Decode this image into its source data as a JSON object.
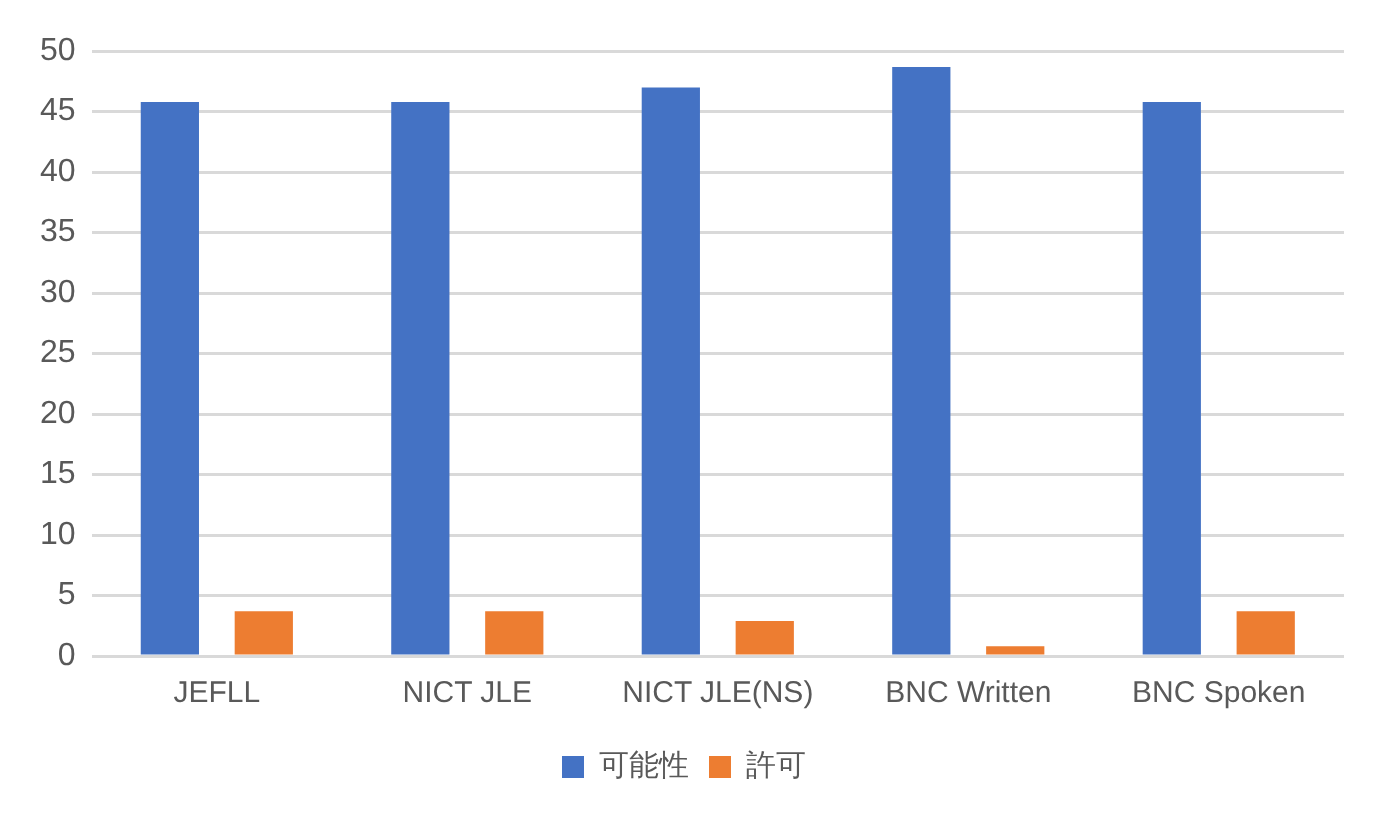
{
  "chart_data": {
    "type": "bar",
    "categories": [
      "JEFLL",
      "NICT JLE",
      "NICT JLE(NS)",
      "BNC Written",
      "BNC Spoken"
    ],
    "series": [
      {
        "name": "可能性",
        "color": "#4472c4",
        "values": [
          45.8,
          45.8,
          47.0,
          48.7,
          45.8
        ]
      },
      {
        "name": "許可",
        "color": "#ed7d31",
        "values": [
          3.7,
          3.7,
          2.9,
          0.8,
          3.7
        ]
      }
    ],
    "ylim": [
      0,
      50
    ],
    "yticks": [
      0,
      5,
      10,
      15,
      20,
      25,
      30,
      35,
      40,
      45,
      50
    ],
    "grid": "y",
    "legend": "bottom"
  }
}
